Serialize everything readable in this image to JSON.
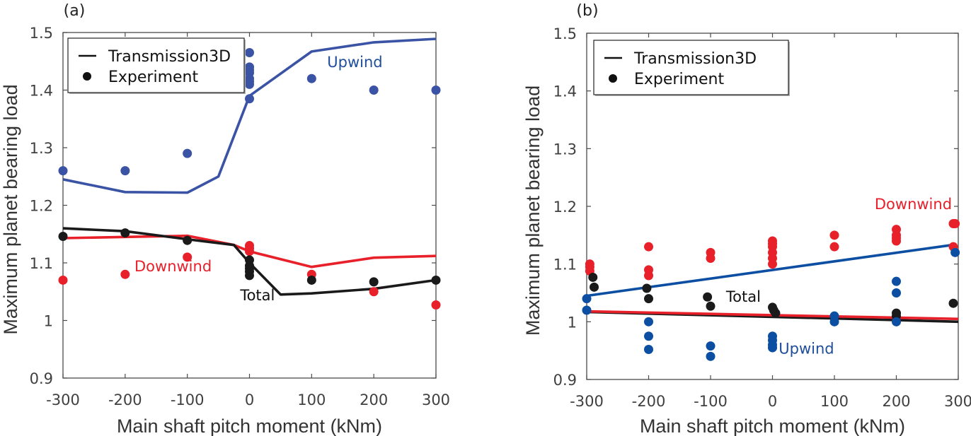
{
  "chart_data": [
    {
      "type": "line",
      "panel_label": "(a)",
      "title": "",
      "xlabel": "Main shaft pitch moment (kNm)",
      "ylabel": "Maximum planet bearing load",
      "xlim": [
        -300,
        300
      ],
      "ylim": [
        0.9,
        1.5
      ],
      "xticks": [
        "-300",
        "-200",
        "-100",
        "0",
        "100",
        "200",
        "300"
      ],
      "xtick_values": [
        -300,
        -200,
        -100,
        0,
        100,
        200,
        300
      ],
      "yticks": [
        "0.9",
        "1",
        "1.1",
        "1.2",
        "1.3",
        "1.4",
        "1.5"
      ],
      "ytick_values": [
        0.9,
        1.0,
        1.1,
        1.2,
        1.3,
        1.4,
        1.5
      ],
      "grid": false,
      "legend": {
        "placement": "top-left",
        "entries": [
          {
            "label": "Transmission3D",
            "marker": "line"
          },
          {
            "label": "Experiment",
            "marker": "dot"
          }
        ]
      },
      "series": [
        {
          "name": "Upwind",
          "kind": "line",
          "color": "#3a53a4",
          "x": [
            -300,
            -200,
            -100,
            -50,
            0,
            100,
            200,
            300
          ],
          "y": [
            1.245,
            1.223,
            1.222,
            1.25,
            1.39,
            1.467,
            1.483,
            1.489
          ]
        },
        {
          "name": "Downwind",
          "kind": "line",
          "color": "#e8202a",
          "x": [
            -300,
            -200,
            -100,
            -25,
            0,
            100,
            200,
            300
          ],
          "y": [
            1.143,
            1.145,
            1.147,
            1.131,
            1.12,
            1.093,
            1.109,
            1.112
          ]
        },
        {
          "name": "Total",
          "kind": "line",
          "color": "#1a1a1a",
          "x": [
            -300,
            -200,
            -100,
            -25,
            0,
            50,
            100,
            200,
            300
          ],
          "y": [
            1.16,
            1.155,
            1.141,
            1.131,
            1.1,
            1.045,
            1.047,
            1.055,
            1.07
          ]
        },
        {
          "name": "Upwind experiment",
          "kind": "scatter",
          "color": "#3a53a4",
          "x": [
            -300,
            -200,
            -100,
            0,
            0,
            0,
            0,
            0,
            0,
            0,
            0,
            100,
            200,
            300
          ],
          "y": [
            1.26,
            1.26,
            1.29,
            1.465,
            1.44,
            1.435,
            1.43,
            1.42,
            1.415,
            1.41,
            1.385,
            1.42,
            1.4,
            1.4
          ]
        },
        {
          "name": "Downwind experiment",
          "kind": "scatter",
          "color": "#e8202a",
          "x": [
            -300,
            -200,
            -100,
            0,
            0,
            0,
            100,
            200,
            300
          ],
          "y": [
            1.07,
            1.08,
            1.11,
            1.13,
            1.125,
            1.12,
            1.08,
            1.05,
            1.027
          ]
        },
        {
          "name": "Total experiment",
          "kind": "scatter",
          "color": "#1a1a1a",
          "x": [
            -300,
            -200,
            -100,
            0,
            0,
            0,
            0,
            0,
            100,
            200,
            300
          ],
          "y": [
            1.146,
            1.152,
            1.139,
            1.105,
            1.095,
            1.09,
            1.085,
            1.078,
            1.07,
            1.067,
            1.07
          ]
        }
      ],
      "annotations": [
        {
          "text": "Upwind",
          "x": 125,
          "y": 1.44,
          "color": "#1f4e9c"
        },
        {
          "text": "Downwind",
          "x": -185,
          "y": 1.085,
          "color": "#e8202a"
        },
        {
          "text": "Total",
          "x": -15,
          "y": 1.035,
          "color": "#111111"
        }
      ]
    },
    {
      "type": "line",
      "panel_label": "(b)",
      "title": "",
      "xlabel": "Main shaft pitch moment (kNm)",
      "ylabel": "Maximum planet bearing load",
      "xlim": [
        -300,
        300
      ],
      "ylim": [
        0.9,
        1.5
      ],
      "xticks": [
        "-300",
        "-200",
        "-100",
        "0",
        "100",
        "200",
        "300"
      ],
      "xtick_values": [
        -300,
        -200,
        -100,
        0,
        100,
        200,
        300
      ],
      "yticks": [
        "0.9",
        "1",
        "1.1",
        "1.2",
        "1.3",
        "1.4",
        "1.5"
      ],
      "ytick_values": [
        0.9,
        1.0,
        1.1,
        1.2,
        1.3,
        1.4,
        1.5
      ],
      "grid": false,
      "legend": {
        "placement": "top-left",
        "entries": [
          {
            "label": "Transmission3D",
            "marker": "line"
          },
          {
            "label": "Experiment",
            "marker": "dot"
          }
        ]
      },
      "series": [
        {
          "name": "Downwind",
          "kind": "line",
          "color": "#0b4ea2",
          "x": [
            -300,
            290
          ],
          "y": [
            1.045,
            1.133
          ]
        },
        {
          "name": "Total",
          "kind": "line",
          "color": "#1a1a1a",
          "x": [
            -300,
            300
          ],
          "y": [
            1.017,
            1.0
          ]
        },
        {
          "name": "Upwind",
          "kind": "line",
          "color": "#e8202a",
          "x": [
            -300,
            300
          ],
          "y": [
            1.018,
            1.005
          ]
        },
        {
          "name": "Downwind experiment",
          "kind": "scatter",
          "color": "#e8202a",
          "x": [
            -295,
            -295,
            -295,
            -200,
            -200,
            -200,
            -100,
            -100,
            0,
            0,
            0,
            0,
            0,
            0,
            100,
            100,
            200,
            200,
            200,
            200,
            292,
            295,
            292
          ],
          "y": [
            1.1,
            1.095,
            1.088,
            1.13,
            1.09,
            1.08,
            1.12,
            1.11,
            1.14,
            1.13,
            1.12,
            1.11,
            1.1,
            1.135,
            1.15,
            1.13,
            1.16,
            1.15,
            1.145,
            1.14,
            1.17,
            1.17,
            1.13
          ]
        },
        {
          "name": "Total experiment",
          "kind": "scatter",
          "color": "#1a1a1a",
          "x": [
            -290,
            -288,
            -203,
            -200,
            -105,
            -100,
            0,
            2,
            5,
            200,
            200,
            292
          ],
          "y": [
            1.077,
            1.06,
            1.058,
            1.04,
            1.043,
            1.027,
            1.025,
            1.02,
            1.015,
            1.015,
            1.01,
            1.032
          ]
        },
        {
          "name": "Upwind experiment",
          "kind": "scatter",
          "color": "#0b4ea2",
          "x": [
            -300,
            -300,
            -200,
            -200,
            -200,
            -100,
            -100,
            0,
            0,
            0,
            0,
            100,
            100,
            200,
            200,
            200,
            295
          ],
          "y": [
            1.04,
            1.02,
            1.0,
            0.975,
            0.952,
            0.958,
            0.94,
            0.975,
            0.968,
            0.96,
            0.955,
            1.01,
            1.0,
            1.07,
            1.05,
            1.0,
            1.12
          ]
        }
      ],
      "annotations": [
        {
          "text": "Downwind",
          "x": 165,
          "y": 1.195,
          "color": "#e8202a"
        },
        {
          "text": "Total",
          "x": -75,
          "y": 1.035,
          "color": "#111111"
        },
        {
          "text": "Upwind",
          "x": 10,
          "y": 0.945,
          "color": "#1f4e9c"
        }
      ]
    }
  ]
}
